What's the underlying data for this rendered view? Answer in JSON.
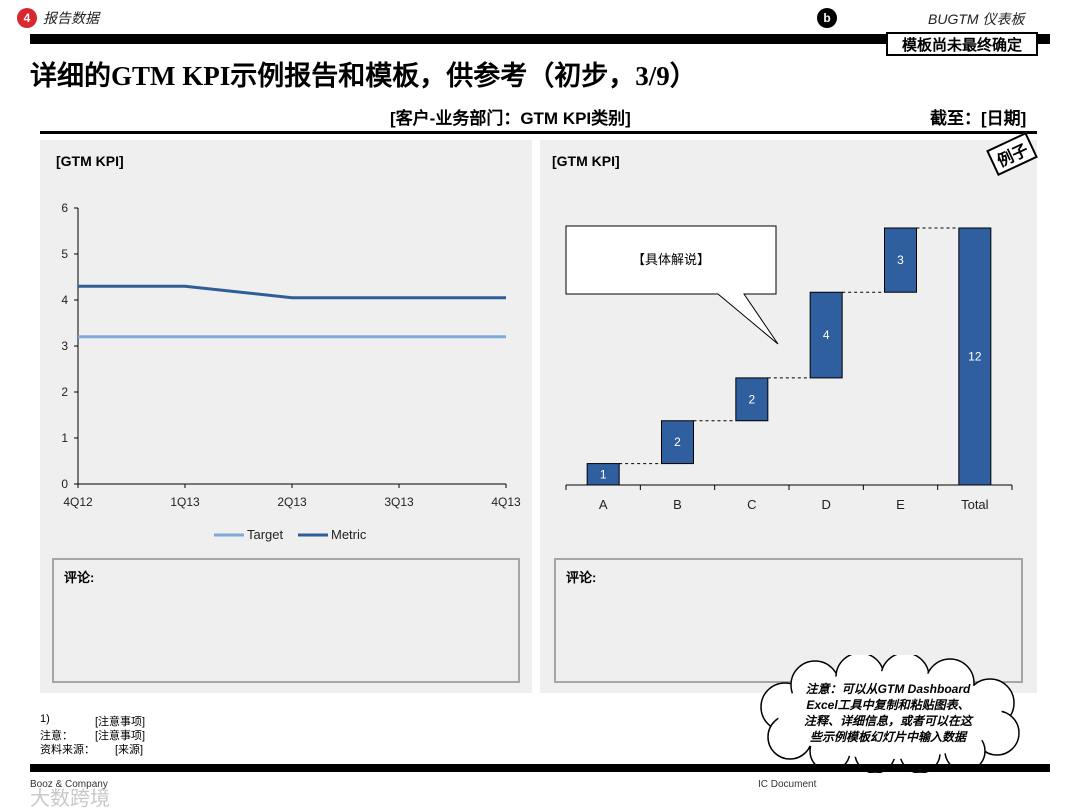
{
  "header": {
    "section_number": "4",
    "section_title": "报告数据",
    "b_badge": "b",
    "dashboard_title": "BUGTM 仪表板",
    "draft_label": "模板尚未最终确定"
  },
  "page_title": "详细的GTM KPI示例报告和模板，供参考（初步，3/9）",
  "subtitle": "[客户-业务部门：GTM KPI类别]",
  "as_of": "截至：[日期]",
  "example_tag": "例子",
  "left_panel": {
    "label": "[GTM KPI]",
    "comment_label": "评论:"
  },
  "right_panel": {
    "label": "[GTM KPI]",
    "comment_label": "评论:",
    "callout_text": "【具体解说】"
  },
  "colors": {
    "target": "#7eaadb",
    "metric": "#2e5d9a",
    "bar": "#2f5f9f"
  },
  "chart_data": [
    {
      "type": "line",
      "x": [
        "4Q12",
        "1Q13",
        "2Q13",
        "3Q13",
        "4Q13"
      ],
      "ylim": [
        0,
        6
      ],
      "yticks": [
        "0",
        "1",
        "2",
        "3",
        "4",
        "5",
        "6"
      ],
      "series": [
        {
          "name": "Target",
          "values": [
            3.2,
            3.2,
            3.2,
            3.2,
            3.2
          ]
        },
        {
          "name": "Metric",
          "values": [
            4.3,
            4.3,
            4.05,
            4.05,
            4.05
          ]
        }
      ],
      "legend": "bottom",
      "grid": false
    },
    {
      "type": "bar",
      "subtype": "waterfall",
      "categories": [
        "A",
        "B",
        "C",
        "D",
        "E",
        "Total"
      ],
      "values": [
        1,
        2,
        2,
        4,
        3,
        12
      ],
      "labels": [
        "1",
        "2",
        "2",
        "4",
        "3",
        "12"
      ]
    }
  ],
  "notes": {
    "n1_key": "1)",
    "n1_val": "[注意事项]",
    "n2_key": "注意：",
    "n2_val": "[注意事项]",
    "n3_key": "资料来源：",
    "n3_val": "[来源]"
  },
  "cloud_text": {
    "l1": "注意：可以从GTM Dashboard",
    "l2": "Excel工具中复制和粘贴图表、",
    "l3": "注释、详细信息，或者可以在这",
    "l4": "些示例模板幻灯片中输入数据"
  },
  "footer": {
    "company": "Booz & Company",
    "doc": "IC Document",
    "watermark": "大数跨境"
  }
}
